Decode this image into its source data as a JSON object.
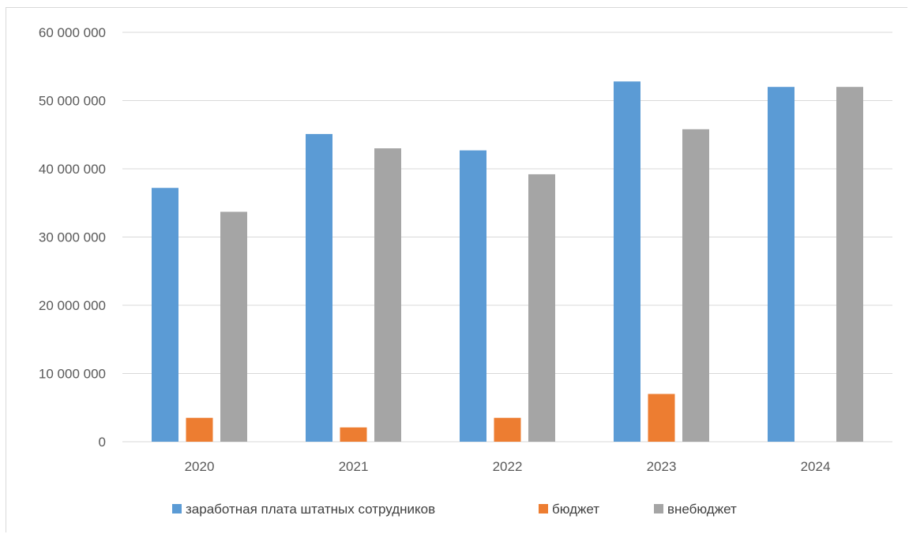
{
  "chart_data": {
    "type": "bar",
    "title": "",
    "xlabel": "",
    "ylabel": "",
    "categories": [
      "2020",
      "2021",
      "2022",
      "2023",
      "2024"
    ],
    "series": [
      {
        "name": "заработная плата штатных сотрудников",
        "color": "#5b9bd5",
        "values": [
          37200000,
          45100000,
          42700000,
          52800000,
          52000000
        ]
      },
      {
        "name": "бюджет",
        "color": "#ed7d31",
        "values": [
          3500000,
          2100000,
          3500000,
          7000000,
          0
        ]
      },
      {
        "name": "внебюджет",
        "color": "#a5a5a5",
        "values": [
          33700000,
          43000000,
          39200000,
          45800000,
          52000000
        ]
      }
    ],
    "ylim": [
      0,
      60000000
    ],
    "yticks": [
      0,
      10000000,
      20000000,
      30000000,
      40000000,
      50000000,
      60000000
    ],
    "ytick_labels": [
      "0",
      "10 000 000",
      "20 000 000",
      "30 000 000",
      "40 000 000",
      "50 000 000",
      "60 000 000"
    ],
    "grid": true,
    "legend_position": "bottom"
  }
}
